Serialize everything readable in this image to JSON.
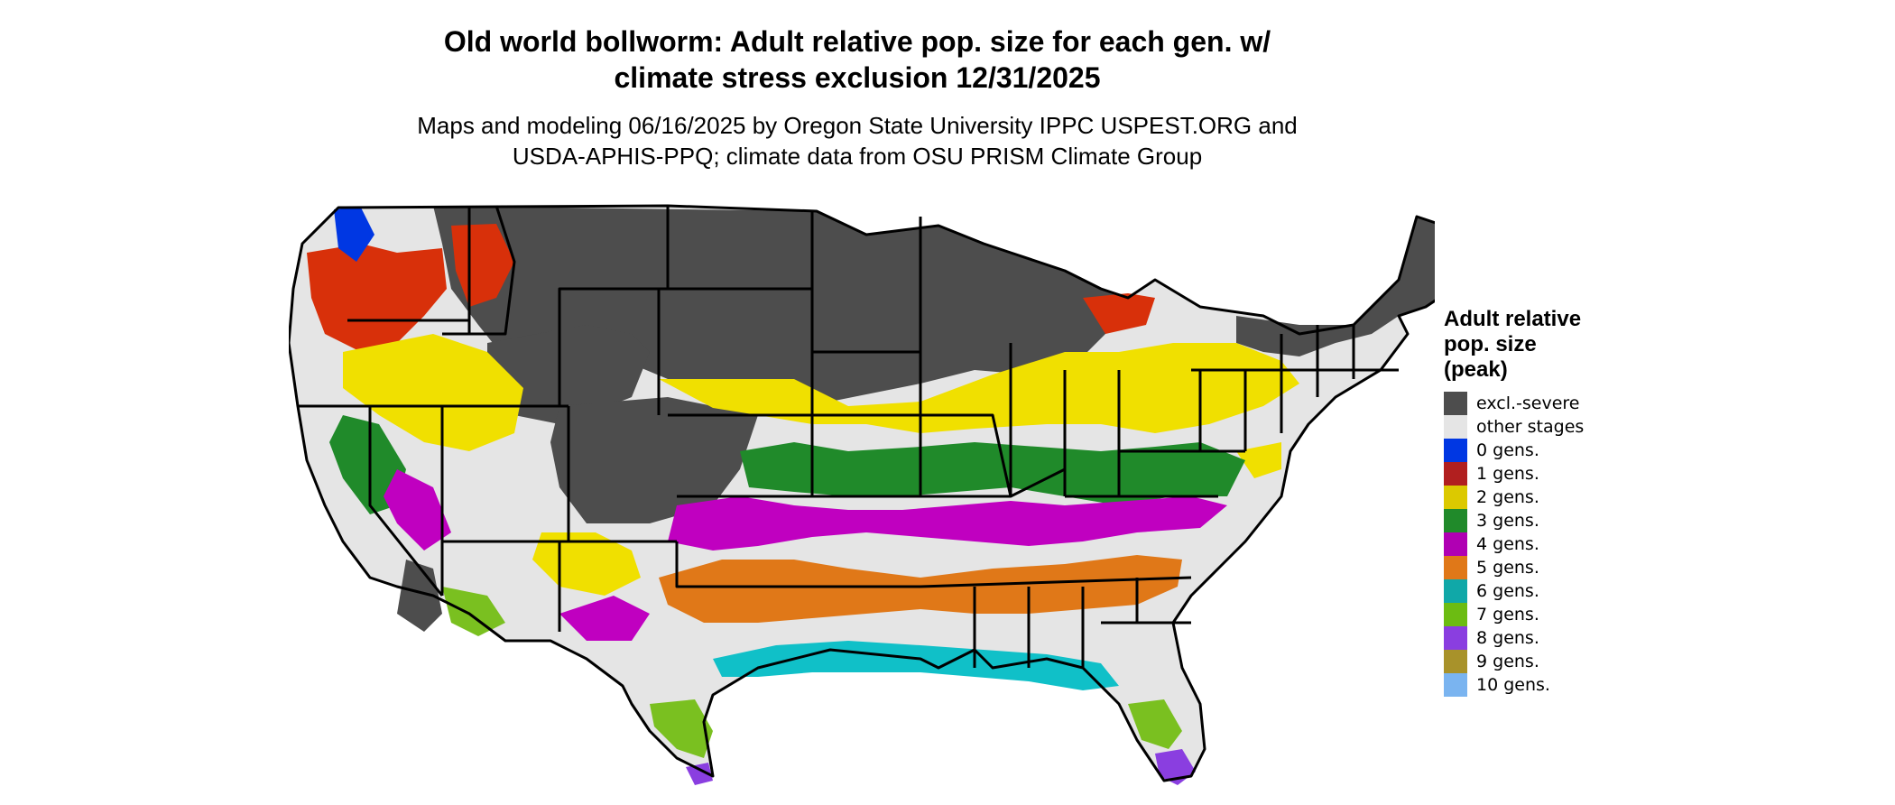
{
  "title": {
    "line1": "Old world bollworm: Adult relative pop. size for each gen. w/",
    "line2": "climate stress exclusion 12/31/2025"
  },
  "subtitle": {
    "line1": "Maps and modeling 06/16/2025 by Oregon State University IPPC USPEST.ORG and",
    "line2": "USDA-APHIS-PPQ; climate data from OSU PRISM Climate Group"
  },
  "legend": {
    "title_lines": [
      "Adult relative",
      "pop. size",
      "(peak)"
    ],
    "items": [
      {
        "label": "excl.-severe",
        "color": "#4d4d4d"
      },
      {
        "label": "other stages",
        "color": "#e5e5e5"
      },
      {
        "label": "0 gens.",
        "color": "#0037e3"
      },
      {
        "label": "1 gens.",
        "color": "#b11f1f"
      },
      {
        "label": "2 gens.",
        "color": "#dcc900"
      },
      {
        "label": "3 gens.",
        "color": "#208a2a"
      },
      {
        "label": "4 gens.",
        "color": "#b000b3"
      },
      {
        "label": "5 gens.",
        "color": "#e07818"
      },
      {
        "label": "6 gens.",
        "color": "#10a8a8"
      },
      {
        "label": "7 gens.",
        "color": "#6cbc12"
      },
      {
        "label": "8 gens.",
        "color": "#8a3ee0"
      },
      {
        "label": "9 gens.",
        "color": "#a8922a"
      },
      {
        "label": "10 gens.",
        "color": "#7ab4f0"
      }
    ]
  },
  "map_colors": {
    "excluded": "#4d4d4d",
    "other": "#e5e5e5",
    "g0": "#0037e3",
    "g1": "#d8300a",
    "g2": "#f0e000",
    "g3": "#208a2a",
    "g4": "#c000c0",
    "g5": "#e07818",
    "g6": "#10c0c8",
    "g7": "#7ac020",
    "g8": "#8a3ee0",
    "border": "#000000"
  }
}
